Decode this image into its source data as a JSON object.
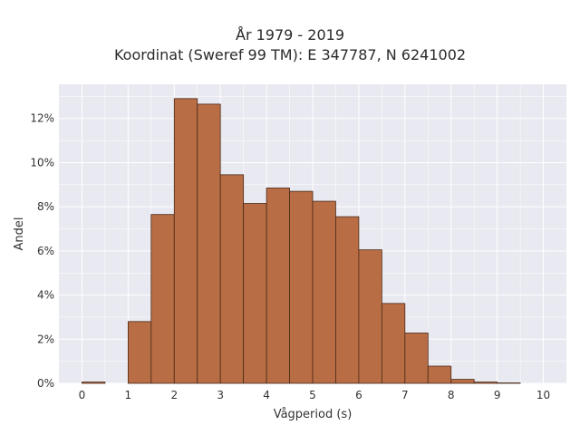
{
  "chart_data": {
    "type": "bar",
    "title": "År 1979 - 2019",
    "subtitle": "Koordinat (Sweref 99 TM): E 347787, N 6241002",
    "xlabel": "Vågperiod (s)",
    "ylabel": "Andel",
    "bin_width": 0.5,
    "bins": [
      0,
      0.5,
      1,
      1.5,
      2,
      2.5,
      3,
      3.5,
      4,
      4.5,
      5,
      5.5,
      6,
      6.5,
      7,
      7.5,
      8,
      8.5,
      9,
      9.5
    ],
    "values": [
      0.0006,
      0,
      0.028,
      0.0765,
      0.129,
      0.1265,
      0.0945,
      0.0815,
      0.0885,
      0.087,
      0.0825,
      0.0755,
      0.0605,
      0.0362,
      0.0228,
      0.0078,
      0.0018,
      0.0006,
      0.0002,
      0
    ],
    "xlim": [
      -0.5,
      10.5
    ],
    "ylim": [
      0,
      0.1355
    ],
    "x_ticks": [
      0,
      1,
      2,
      3,
      4,
      5,
      6,
      7,
      8,
      9,
      10
    ],
    "x_tick_labels": [
      "0",
      "1",
      "2",
      "3",
      "4",
      "5",
      "6",
      "7",
      "8",
      "9",
      "10"
    ],
    "y_ticks": [
      0,
      0.02,
      0.04,
      0.06,
      0.08,
      0.1,
      0.12
    ],
    "y_tick_labels": [
      "0%",
      "2%",
      "4%",
      "6%",
      "8%",
      "10%",
      "12%"
    ],
    "grid": true,
    "colors": {
      "bar_fill": "#b86d45",
      "bar_stroke": "#4a2a18",
      "plot_background": "#e9e9f1",
      "grid": "#ffffff"
    }
  }
}
